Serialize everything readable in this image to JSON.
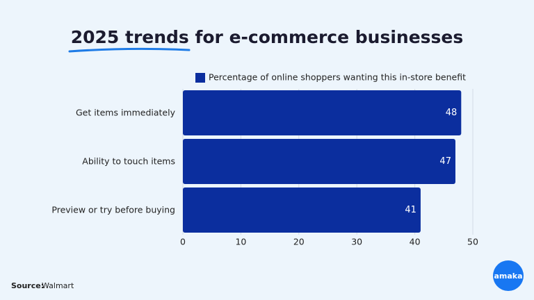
{
  "chart_data": {
    "type": "bar",
    "orientation": "horizontal",
    "title": "2025 trends for e-commerce businesses",
    "categories": [
      "Get items immediately",
      "Ability to touch items",
      "Preview or try before buying"
    ],
    "series": [
      {
        "name": "Percentage of online shoppers wanting this in-store benefit",
        "color": "#0b2e9e",
        "values": [
          48,
          47,
          41
        ]
      }
    ],
    "xlim": [
      0,
      50
    ],
    "xticks": [
      0,
      10,
      20,
      30,
      40,
      50
    ],
    "grid": true,
    "legend": "top",
    "source_label": "Source:",
    "source": "Walmart",
    "logo": "amaka"
  }
}
